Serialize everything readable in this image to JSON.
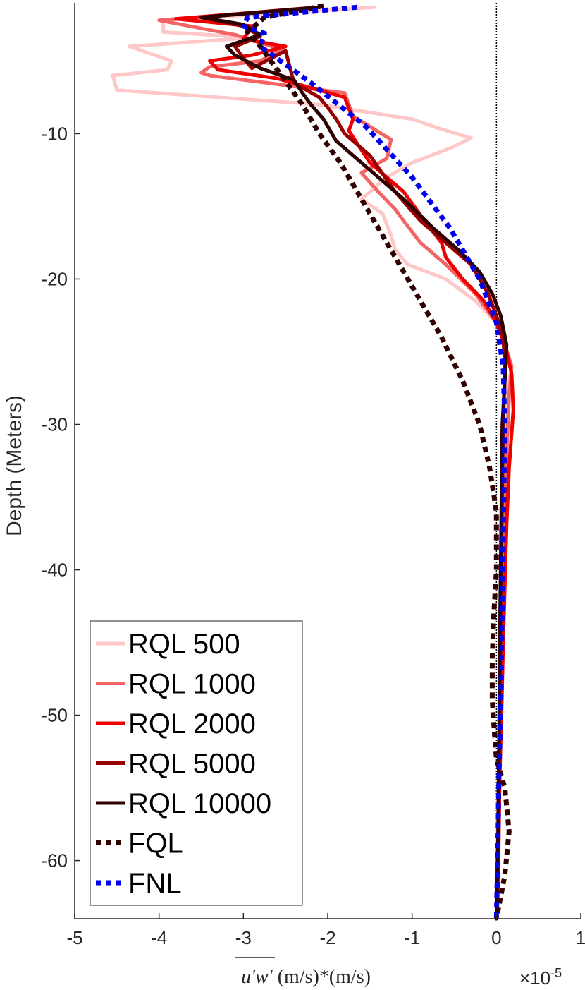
{
  "chart_data": {
    "type": "line",
    "title": "",
    "xlabel_var": "u'w'",
    "xlabel_units": " (m/s)*(m/s)",
    "ylabel": "Depth (Meters)",
    "x_multiplier": "×10",
    "x_multiplier_exp": "-5",
    "xlim": [
      -5,
      1
    ],
    "ylim": [
      -64,
      -1
    ],
    "xticks": [
      -5,
      -4,
      -3,
      -2,
      -1,
      0,
      1
    ],
    "xtick_labels": [
      "-5",
      "-4",
      "-3",
      "-2",
      "-1",
      "0",
      "1"
    ],
    "yticks": [
      -60,
      -50,
      -40,
      -30,
      -20,
      -10
    ],
    "ytick_labels": [
      "-60",
      "-50",
      "-40",
      "-30",
      "-20",
      "-10"
    ],
    "reference_line_x": 0,
    "legend_position": "bottom-left",
    "series": [
      {
        "name": "RQL 500",
        "color": "#ffc8c8",
        "style": "solid",
        "x": [
          -1.45,
          -3.95,
          -3.95,
          -2.9,
          -4.35,
          -3.85,
          -3.9,
          -4.55,
          -4.5,
          -2.1,
          -1.0,
          -0.7,
          -0.3,
          -0.55,
          -1.0,
          -1.3,
          -1.6,
          -1.35,
          -1.25,
          -1.2,
          -1.05,
          -0.6,
          -0.25,
          0.0,
          0.1,
          0.18,
          0.12,
          0.1,
          0.08,
          0.06,
          0.05,
          0.04,
          0.03,
          0.02,
          0.01,
          0.0
        ],
        "y": [
          -1.3,
          -2.2,
          -3.0,
          -3.4,
          -4.0,
          -5.0,
          -5.6,
          -6.0,
          -7.0,
          -8.0,
          -9.0,
          -9.6,
          -10.3,
          -11.0,
          -12.0,
          -13.0,
          -14.5,
          -15.5,
          -17.0,
          -18.0,
          -19.0,
          -20.0,
          -21.5,
          -23.0,
          -24.5,
          -26.0,
          -28.0,
          -32.0,
          -36.0,
          -40.0,
          -44.0,
          -48.0,
          -52.0,
          -56.0,
          -60.0,
          -64.0
        ]
      },
      {
        "name": "RQL 1000",
        "color": "#f36464",
        "style": "solid",
        "x": [
          -2.1,
          -4.0,
          -3.1,
          -2.55,
          -2.8,
          -3.4,
          -3.5,
          -3.4,
          -1.8,
          -1.7,
          -1.25,
          -1.3,
          -1.6,
          -1.4,
          -1.2,
          -1.1,
          -0.9,
          -0.6,
          -0.25,
          0.0,
          0.1,
          0.18,
          0.15,
          0.12,
          0.1,
          0.08,
          0.06,
          0.05,
          0.04,
          0.03,
          0.02,
          0.01,
          0.0
        ],
        "y": [
          -1.3,
          -2.2,
          -3.2,
          -4.2,
          -5.0,
          -5.4,
          -5.8,
          -6.0,
          -7.2,
          -8.8,
          -10.4,
          -11.7,
          -12.7,
          -14.0,
          -15.2,
          -16.0,
          -17.5,
          -19.0,
          -21.0,
          -23.0,
          -24.5,
          -26.0,
          -28.0,
          -32.0,
          -36.0,
          -40.0,
          -44.0,
          -48.0,
          -52.0,
          -56.0,
          -58.0,
          -62.0,
          -64.0
        ]
      },
      {
        "name": "RQL 2000",
        "color": "#ee0000",
        "style": "solid",
        "x": [
          -2.1,
          -3.8,
          -2.9,
          -3.0,
          -2.5,
          -2.9,
          -3.4,
          -3.3,
          -2.6,
          -1.8,
          -1.7,
          -1.75,
          -1.5,
          -1.1,
          -0.85,
          -0.65,
          -0.6,
          -0.4,
          -0.15,
          0.0,
          0.1,
          0.18,
          0.2,
          0.15,
          0.12,
          0.1,
          0.08,
          0.06,
          0.04,
          0.03,
          0.02,
          0.0
        ],
        "y": [
          -1.3,
          -2.1,
          -2.6,
          -3.5,
          -4.0,
          -4.6,
          -5.0,
          -5.6,
          -6.2,
          -7.5,
          -9.0,
          -9.8,
          -12.0,
          -14.0,
          -16.0,
          -17.5,
          -18.5,
          -20.0,
          -21.5,
          -23.0,
          -24.5,
          -26.5,
          -29.0,
          -33.0,
          -37.0,
          -41.0,
          -45.0,
          -50.0,
          -54.0,
          -58.0,
          -62.0,
          -64.0
        ]
      },
      {
        "name": "RQL 5000",
        "color": "#990000",
        "style": "solid",
        "x": [
          -2.1,
          -3.5,
          -3.0,
          -2.8,
          -3.1,
          -3.0,
          -2.9,
          -2.5,
          -2.4,
          -2.1,
          -2.0,
          -1.9,
          -1.8,
          -1.5,
          -1.2,
          -0.9,
          -0.6,
          -0.3,
          -0.1,
          0.0,
          0.08,
          0.1,
          0.08,
          0.07,
          0.06,
          0.05,
          0.04,
          0.03,
          0.02,
          0.0
        ],
        "y": [
          -1.3,
          -2.0,
          -2.6,
          -3.3,
          -4.0,
          -4.8,
          -5.5,
          -4.3,
          -6.5,
          -7.5,
          -8.2,
          -9.0,
          -10.0,
          -11.5,
          -14.0,
          -16.0,
          -17.5,
          -19.0,
          -21.0,
          -22.5,
          -24.0,
          -26.0,
          -30.0,
          -34.0,
          -38.0,
          -42.0,
          -48.0,
          -54.0,
          -60.0,
          -64.0
        ]
      },
      {
        "name": "RQL 10000",
        "color": "#2e0000",
        "style": "solid",
        "x": [
          -2.1,
          -3.5,
          -3.0,
          -2.8,
          -3.2,
          -3.1,
          -2.8,
          -2.4,
          -2.3,
          -2.2,
          -2.05,
          -1.9,
          -1.5,
          -1.1,
          -0.75,
          -0.45,
          -0.2,
          -0.05,
          0.05,
          0.12,
          0.1,
          0.07,
          0.06,
          0.05,
          0.04,
          0.03,
          0.02,
          0.0
        ],
        "y": [
          -1.3,
          -2.0,
          -2.5,
          -3.2,
          -4.0,
          -4.6,
          -5.5,
          -6.3,
          -7.2,
          -8.0,
          -9.0,
          -10.5,
          -12.5,
          -14.5,
          -16.5,
          -18.0,
          -19.5,
          -21.0,
          -22.5,
          -24.5,
          -27.0,
          -30.0,
          -35.0,
          -40.0,
          -45.0,
          -52.0,
          -58.0,
          -64.0
        ]
      },
      {
        "name": "FQL",
        "color": "#2e0000",
        "style": "dotted",
        "x": [
          -2.05,
          -2.75,
          -2.95,
          -2.8,
          -2.55,
          -2.3,
          -2.1,
          -1.85,
          -1.55,
          -1.25,
          -0.95,
          -0.65,
          -0.4,
          -0.2,
          -0.08,
          0.0,
          0.0,
          -0.03,
          -0.05,
          -0.05,
          -0.02,
          0.0,
          0.1,
          0.15,
          0.1,
          0.0
        ],
        "y": [
          -1.2,
          -2.0,
          -3.0,
          -4.0,
          -6.0,
          -8.0,
          -10.0,
          -12.0,
          -15.0,
          -18.0,
          -21.0,
          -24.0,
          -27.0,
          -30.0,
          -33.0,
          -36.0,
          -40.0,
          -43.0,
          -46.0,
          -49.0,
          -51.5,
          -53.0,
          -55.0,
          -58.0,
          -61.0,
          -64.0
        ]
      },
      {
        "name": "FNL",
        "color": "#0000ee",
        "style": "dotted",
        "x": [
          -1.65,
          -2.95,
          -3.0,
          -2.75,
          -2.8,
          -2.2,
          -1.55,
          -1.0,
          -0.55,
          -0.2,
          0.0,
          0.08,
          0.1,
          0.09,
          0.08,
          0.07,
          0.06,
          0.05,
          0.03,
          0.02,
          0.01,
          0.0
        ],
        "y": [
          -1.3,
          -2.0,
          -2.6,
          -3.1,
          -4.0,
          -6.5,
          -9.5,
          -13.0,
          -16.5,
          -20.0,
          -23.0,
          -26.0,
          -30.0,
          -34.0,
          -38.0,
          -42.0,
          -46.0,
          -50.0,
          -54.0,
          -58.0,
          -61.0,
          -64.0
        ]
      }
    ]
  }
}
